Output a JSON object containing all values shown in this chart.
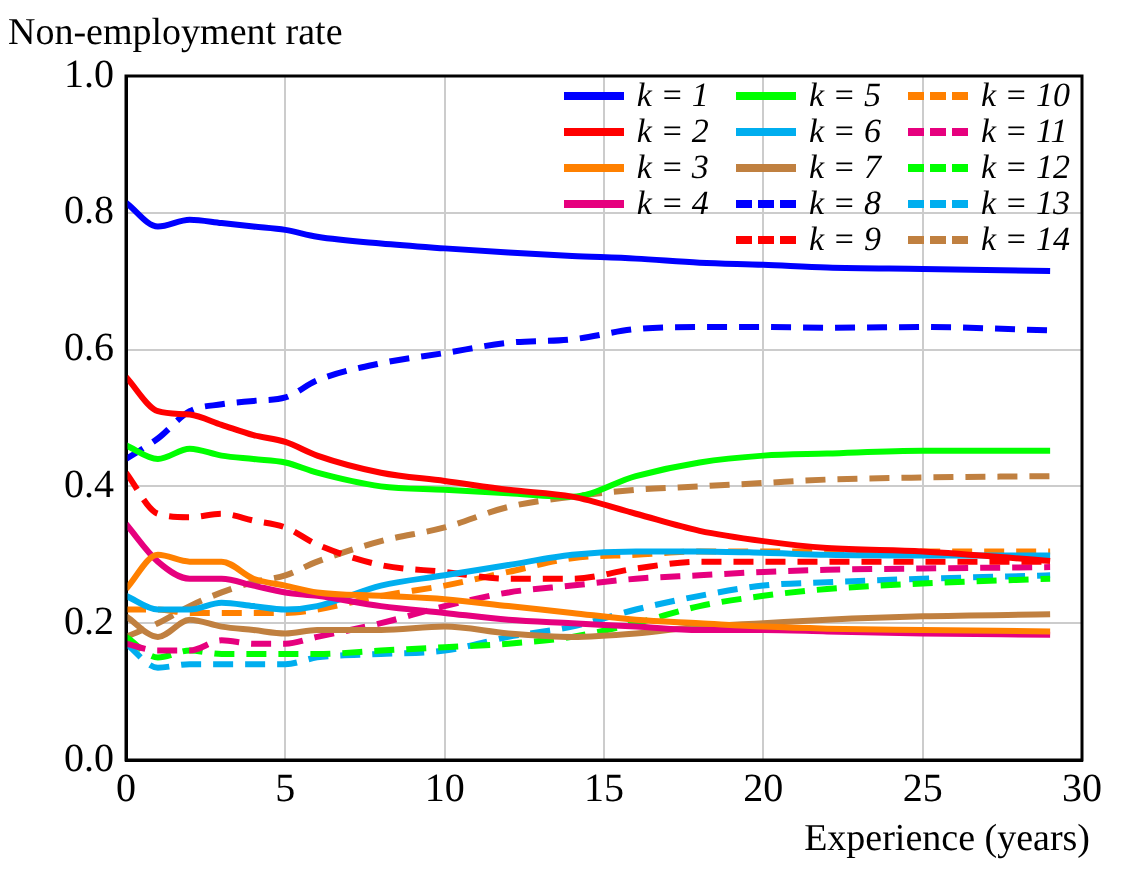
{
  "chart_data": {
    "type": "line",
    "ylabel": "Non-employment rate",
    "xlabel": "Experience (years)",
    "x": [
      0,
      1,
      2,
      3,
      4,
      5,
      6,
      8,
      10,
      12,
      14,
      16,
      18,
      20,
      22,
      25,
      29
    ],
    "xlim": [
      0,
      30
    ],
    "xticks": [
      0,
      5,
      10,
      15,
      20,
      25,
      30
    ],
    "ylim": [
      0,
      1
    ],
    "yticks": [
      {
        "value": 0,
        "label": "0.0"
      },
      {
        "value": 0.2,
        "label": "0.2"
      },
      {
        "value": 0.4,
        "label": "0.4"
      },
      {
        "value": 0.6,
        "label": "0.6"
      },
      {
        "value": 0.8,
        "label": "0.8"
      },
      {
        "value": 1,
        "label": "1.0"
      }
    ],
    "grid": true,
    "legend": "top right",
    "marker": "none",
    "series": [
      {
        "name": "k = 1",
        "color": "#0000ff",
        "line_style": "solid",
        "values": [
          0.815,
          0.78,
          0.79,
          0.785,
          0.78,
          0.775,
          0.765,
          0.755,
          0.748,
          0.742,
          0.737,
          0.733,
          0.727,
          0.724,
          0.72,
          0.718,
          0.715
        ]
      },
      {
        "name": "k = 2",
        "color": "#ff0000",
        "line_style": "solid",
        "values": [
          0.56,
          0.51,
          0.505,
          0.49,
          0.475,
          0.465,
          0.445,
          0.42,
          0.408,
          0.395,
          0.385,
          0.36,
          0.335,
          0.32,
          0.31,
          0.305,
          0.291
        ]
      },
      {
        "name": "k = 3",
        "color": "#ff8000",
        "line_style": "solid",
        "values": [
          0.25,
          0.3,
          0.29,
          0.29,
          0.265,
          0.255,
          0.245,
          0.24,
          0.235,
          0.225,
          0.215,
          0.205,
          0.2,
          0.195,
          0.192,
          0.19,
          0.188
        ]
      },
      {
        "name": "k = 4",
        "color": "#e6007e",
        "line_style": "solid",
        "values": [
          0.345,
          0.29,
          0.265,
          0.265,
          0.255,
          0.245,
          0.24,
          0.225,
          0.215,
          0.205,
          0.2,
          0.195,
          0.19,
          0.19,
          0.188,
          0.185,
          0.183
        ]
      },
      {
        "name": "k = 5",
        "color": "#00ff00",
        "line_style": "solid",
        "values": [
          0.46,
          0.44,
          0.455,
          0.445,
          0.44,
          0.435,
          0.42,
          0.4,
          0.395,
          0.39,
          0.385,
          0.415,
          0.435,
          0.445,
          0.448,
          0.452,
          0.452
        ]
      },
      {
        "name": "k = 6",
        "color": "#00aeef",
        "line_style": "solid",
        "values": [
          0.24,
          0.22,
          0.22,
          0.23,
          0.225,
          0.22,
          0.225,
          0.255,
          0.27,
          0.285,
          0.3,
          0.305,
          0.305,
          0.303,
          0.3,
          0.299,
          0.299
        ]
      },
      {
        "name": "k = 7",
        "color": "#c08040",
        "line_style": "solid",
        "values": [
          0.21,
          0.18,
          0.205,
          0.195,
          0.19,
          0.185,
          0.19,
          0.19,
          0.195,
          0.185,
          0.18,
          0.185,
          0.195,
          0.2,
          0.205,
          0.21,
          0.213
        ]
      },
      {
        "name": "k = 8",
        "color": "#0000ff",
        "line_style": "dashed",
        "values": [
          0.44,
          0.47,
          0.51,
          0.52,
          0.525,
          0.53,
          0.555,
          0.58,
          0.595,
          0.61,
          0.615,
          0.63,
          0.633,
          0.633,
          0.632,
          0.633,
          0.628
        ]
      },
      {
        "name": "k = 9",
        "color": "#ff0000",
        "line_style": "dashed",
        "values": [
          0.42,
          0.36,
          0.355,
          0.36,
          0.35,
          0.34,
          0.315,
          0.285,
          0.275,
          0.265,
          0.265,
          0.28,
          0.29,
          0.29,
          0.29,
          0.29,
          0.29
        ]
      },
      {
        "name": "k = 10",
        "color": "#ff8000",
        "line_style": "dashed",
        "values": [
          0.22,
          0.22,
          0.215,
          0.215,
          0.215,
          0.215,
          0.22,
          0.24,
          0.255,
          0.275,
          0.295,
          0.3,
          0.305,
          0.305,
          0.305,
          0.305,
          0.305
        ]
      },
      {
        "name": "k = 11",
        "color": "#e6007e",
        "line_style": "dashed",
        "values": [
          0.17,
          0.16,
          0.16,
          0.175,
          0.17,
          0.17,
          0.18,
          0.2,
          0.225,
          0.245,
          0.255,
          0.265,
          0.27,
          0.275,
          0.278,
          0.28,
          0.282
        ]
      },
      {
        "name": "k = 12",
        "color": "#00ff00",
        "line_style": "dashed",
        "values": [
          0.18,
          0.15,
          0.16,
          0.155,
          0.155,
          0.155,
          0.155,
          0.16,
          0.165,
          0.17,
          0.18,
          0.2,
          0.225,
          0.24,
          0.25,
          0.258,
          0.265
        ]
      },
      {
        "name": "k = 13",
        "color": "#00aeef",
        "line_style": "dashed",
        "values": [
          0.17,
          0.135,
          0.14,
          0.14,
          0.14,
          0.14,
          0.15,
          0.155,
          0.16,
          0.18,
          0.195,
          0.22,
          0.24,
          0.255,
          0.26,
          0.265,
          0.27
        ]
      },
      {
        "name": "k = 14",
        "color": "#c08040",
        "line_style": "dashed",
        "values": [
          0.18,
          0.2,
          0.225,
          0.245,
          0.26,
          0.27,
          0.29,
          0.32,
          0.34,
          0.37,
          0.385,
          0.395,
          0.4,
          0.405,
          0.41,
          0.413,
          0.415
        ]
      }
    ]
  }
}
